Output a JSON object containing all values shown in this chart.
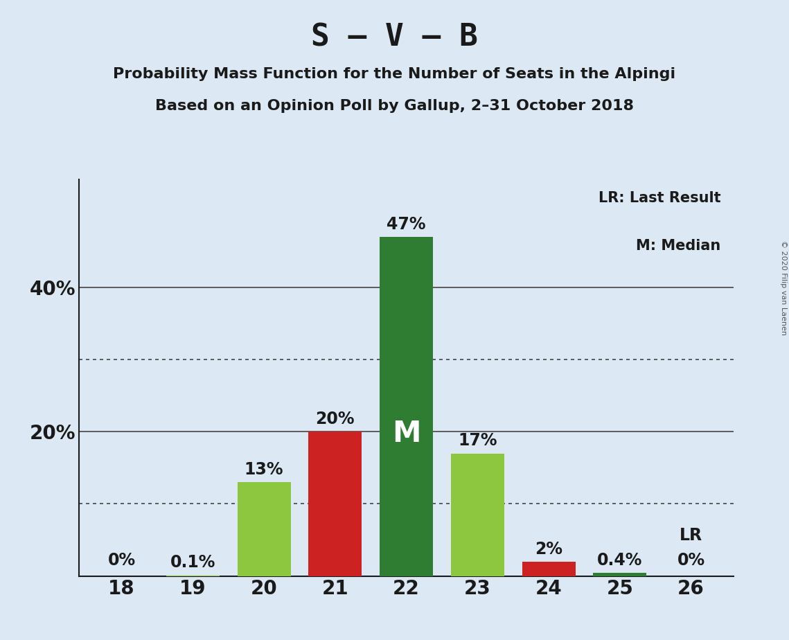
{
  "title": "S – V – B",
  "subtitle1": "Probability Mass Function for the Number of Seats in the Alpingi",
  "subtitle2": "Based on an Opinion Poll by Gallup, 2–31 October 2018",
  "copyright": "© 2020 Filip van Laenen",
  "categories": [
    18,
    19,
    20,
    21,
    22,
    23,
    24,
    25,
    26
  ],
  "values": [
    0.0,
    0.1,
    13.0,
    20.0,
    47.0,
    17.0,
    2.0,
    0.4,
    0.0
  ],
  "bar_colors": [
    "#8dc63f",
    "#8dc63f",
    "#8dc63f",
    "#cc2222",
    "#2e7d32",
    "#8dc63f",
    "#cc2222",
    "#2e7d32",
    "#2e7d32"
  ],
  "bar_labels": [
    "0%",
    "0.1%",
    "13%",
    "20%",
    "47%",
    "17%",
    "2%",
    "0.4%",
    "0%"
  ],
  "median_bar_index": 4,
  "median_label": "M",
  "lr_bar_index": 8,
  "lr_label": "LR",
  "legend_lr": "LR: Last Result",
  "legend_m": "M: Median",
  "background_color": "#dce9f5",
  "ylim": [
    0,
    55
  ],
  "yticks": [
    0,
    20,
    40
  ],
  "ytick_labels": [
    "",
    "20%",
    "40%"
  ],
  "dotted_lines": [
    10,
    30
  ],
  "solid_lines": [
    20,
    40
  ],
  "title_fontsize": 32,
  "subtitle_fontsize": 16,
  "label_fontsize": 17,
  "tick_fontsize": 20,
  "legend_fontsize": 15
}
